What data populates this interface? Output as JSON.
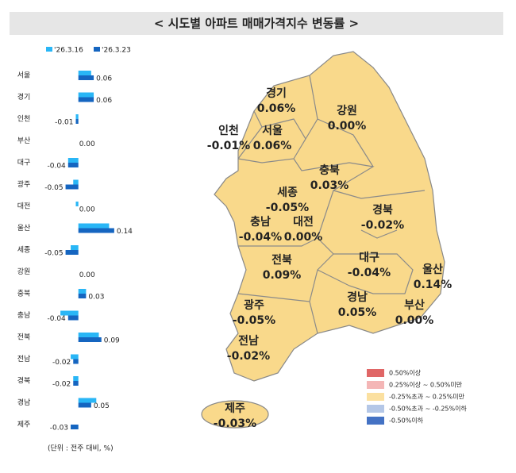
{
  "header": {
    "title": "< 시도별 아파트 매매가격지수 변동률 >"
  },
  "chart_data": [
    {
      "type": "hbar",
      "note": "(단위 : 전주 대비, %)",
      "categories": [
        "서울",
        "경기",
        "인천",
        "부산",
        "대구",
        "광주",
        "대전",
        "울산",
        "세종",
        "강원",
        "충북",
        "충남",
        "전북",
        "전남",
        "경북",
        "경남",
        "제주"
      ],
      "series": [
        {
          "name": "'26.3.16",
          "color": "#29b6f6",
          "values": [
            0.05,
            0.06,
            -0.01,
            0.0,
            -0.04,
            -0.02,
            -0.01,
            0.12,
            -0.03,
            0.0,
            0.03,
            -0.07,
            0.08,
            -0.03,
            -0.02,
            0.07,
            0.0
          ]
        },
        {
          "name": "'26.3.23",
          "color": "#1565c0",
          "values": [
            0.06,
            0.06,
            -0.01,
            0.0,
            -0.04,
            -0.05,
            0.0,
            0.14,
            -0.05,
            0.0,
            0.03,
            -0.04,
            0.09,
            -0.02,
            -0.02,
            0.05,
            -0.03
          ],
          "value_labels": [
            "0.06",
            "0.06",
            "-0.01",
            "0.00",
            "-0.04",
            "-0.05",
            "0.00",
            "0.14",
            "-0.05",
            "0.00",
            "0.03",
            "-0.04",
            "0.09",
            "-0.02",
            "-0.02",
            "0.05",
            "-0.03"
          ]
        }
      ],
      "xlim": [
        -0.12,
        0.19
      ],
      "legend": "top-left"
    },
    {
      "type": "map",
      "fill": "#f9d98b",
      "regions": [
        {
          "name": "경기",
          "label": "0.06%"
        },
        {
          "name": "강원",
          "label": "0.00%"
        },
        {
          "name": "인천",
          "label": "-0.01%"
        },
        {
          "name": "서울",
          "label": "0.06%"
        },
        {
          "name": "충북",
          "label": "0.03%"
        },
        {
          "name": "세종",
          "label": "-0.05%"
        },
        {
          "name": "충남",
          "label": "-0.04%"
        },
        {
          "name": "대전",
          "label": "0.00%"
        },
        {
          "name": "경북",
          "label": "-0.02%"
        },
        {
          "name": "전북",
          "label": "0.09%"
        },
        {
          "name": "대구",
          "label": "-0.04%"
        },
        {
          "name": "울산",
          "label": "0.14%"
        },
        {
          "name": "경남",
          "label": "0.05%"
        },
        {
          "name": "부산",
          "label": "0.00%"
        },
        {
          "name": "광주",
          "label": "-0.05%"
        },
        {
          "name": "전남",
          "label": "-0.02%"
        },
        {
          "name": "제주",
          "label": "-0.03%"
        }
      ],
      "legend": [
        {
          "label": "0.50%이상",
          "color": "#e06666"
        },
        {
          "label": "0.25%이상 ~ 0.50%미만",
          "color": "#f4b6b6"
        },
        {
          "label": "-0.25%초과 ~ 0.25%미만",
          "color": "#fbe0a0"
        },
        {
          "label": "-0.50%초과 ~ -0.25%이하",
          "color": "#b4c7e7"
        },
        {
          "label": "-0.50%이하",
          "color": "#4472c4"
        }
      ]
    }
  ]
}
